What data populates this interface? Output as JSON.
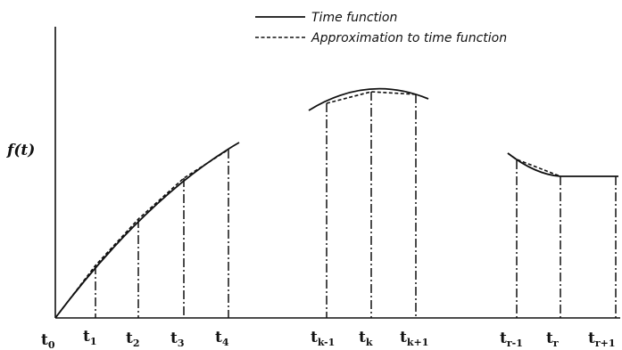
{
  "legend": {
    "solid_label": "Time function",
    "dashed_label": "Approximation to time function"
  },
  "y_axis_label": "f(t)",
  "x_labels": [
    {
      "base": "t",
      "sub": "0"
    },
    {
      "base": "t",
      "sub": "1"
    },
    {
      "base": "t",
      "sub": "2"
    },
    {
      "base": "t",
      "sub": "3"
    },
    {
      "base": "t",
      "sub": "4"
    },
    {
      "base": "t",
      "sub": "k-1"
    },
    {
      "base": "t",
      "sub": "k"
    },
    {
      "base": "t",
      "sub": "k+1"
    },
    {
      "base": "t",
      "sub": "r-1"
    },
    {
      "base": "t",
      "sub": "r"
    },
    {
      "base": "t",
      "sub": "r+1"
    }
  ]
}
